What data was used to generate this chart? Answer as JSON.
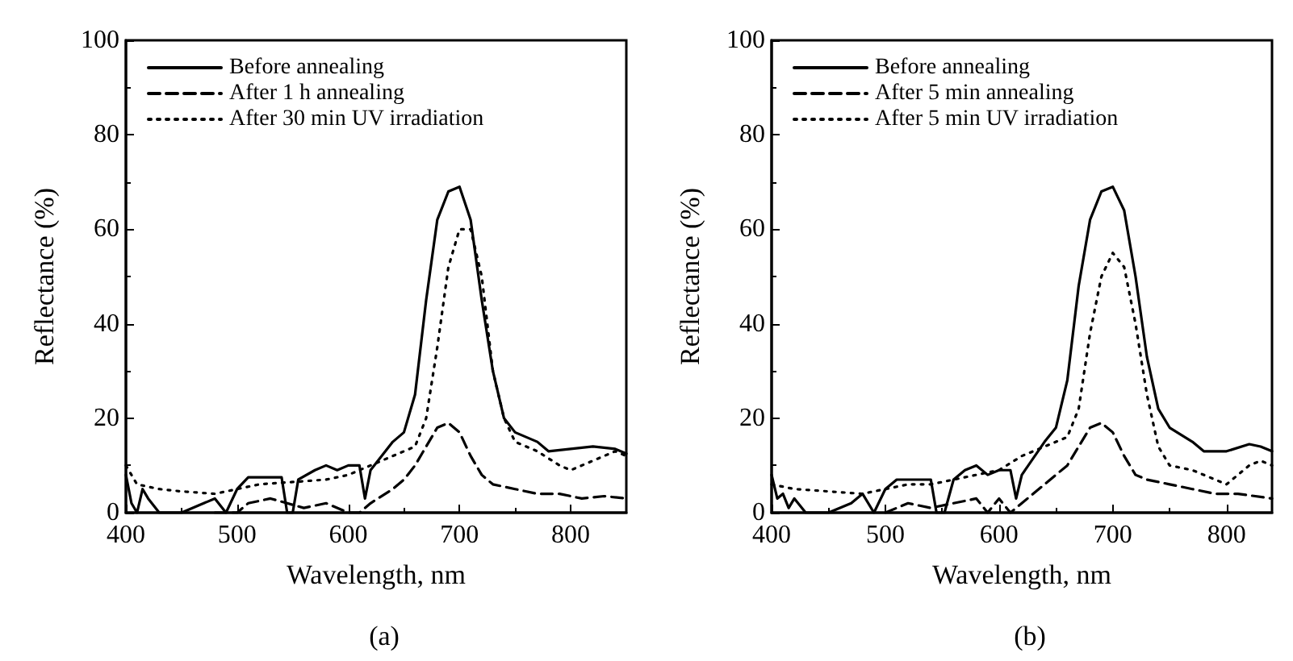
{
  "chart_data": [
    {
      "type": "line",
      "title": "(a)",
      "xlabel": "Wavelength, nm",
      "ylabel": "Reflectance (%)",
      "xlim": [
        400,
        850
      ],
      "xticks": [
        400,
        500,
        600,
        700,
        800
      ],
      "ylim": [
        0,
        100
      ],
      "yticks": [
        0,
        20,
        40,
        60,
        80,
        100
      ],
      "grid": false,
      "legend": "top left",
      "marker": "none",
      "series": [
        {
          "name": "Before annealing",
          "color": "#000000",
          "line_style": "solid",
          "x": [
            400,
            405,
            410,
            415,
            420,
            430,
            450,
            470,
            480,
            490,
            500,
            510,
            530,
            540,
            545,
            550,
            555,
            570,
            580,
            590,
            600,
            610,
            615,
            620,
            640,
            650,
            660,
            670,
            680,
            690,
            700,
            710,
            720,
            730,
            740,
            750,
            770,
            780,
            800,
            820,
            840,
            850
          ],
          "values": [
            8,
            2,
            0,
            5,
            3,
            0,
            0,
            2,
            3,
            0,
            5,
            7.5,
            7.5,
            7.5,
            0,
            0,
            7,
            9,
            10,
            9,
            10,
            10,
            3,
            9,
            15,
            17,
            25,
            45,
            62,
            68,
            69,
            62,
            45,
            30,
            20,
            17,
            15,
            13,
            13.5,
            14,
            13.5,
            12.5
          ]
        },
        {
          "name": "After 1 h annealing",
          "color": "#000000",
          "line_style": "dashed",
          "x": [
            480,
            500,
            510,
            530,
            545,
            560,
            580,
            600,
            610,
            620,
            640,
            650,
            660,
            670,
            680,
            690,
            700,
            710,
            720,
            730,
            750,
            770,
            790,
            810,
            830,
            850
          ],
          "values": [
            0,
            0,
            2,
            3,
            2,
            1,
            2,
            0,
            0,
            2,
            5,
            7,
            10,
            14,
            18,
            19,
            17,
            12,
            8,
            6,
            5,
            4,
            4,
            3,
            3.5,
            3
          ]
        },
        {
          "name": "After 30 min UV irradiation",
          "color": "#000000",
          "line_style": "dotted",
          "x": [
            400,
            410,
            430,
            450,
            480,
            500,
            520,
            550,
            580,
            600,
            620,
            640,
            660,
            670,
            680,
            690,
            700,
            710,
            720,
            730,
            740,
            750,
            770,
            790,
            800,
            820,
            840,
            850
          ],
          "values": [
            10,
            6,
            5,
            4.5,
            4,
            5,
            6,
            6.5,
            7,
            8,
            10,
            12,
            14,
            20,
            35,
            52,
            60,
            60,
            50,
            30,
            20,
            15,
            13,
            10,
            9,
            11,
            13,
            12
          ]
        }
      ]
    },
    {
      "type": "line",
      "title": "(b)",
      "xlabel": "Wavelength, nm",
      "ylabel": "Reflectance (%)",
      "xlim": [
        400,
        840
      ],
      "xticks": [
        400,
        500,
        600,
        700,
        800
      ],
      "ylim": [
        0,
        100
      ],
      "yticks": [
        0,
        20,
        40,
        60,
        80,
        100
      ],
      "grid": false,
      "legend": "top left",
      "marker": "none",
      "series": [
        {
          "name": "Before annealing",
          "color": "#000000",
          "line_style": "solid",
          "x": [
            400,
            405,
            410,
            415,
            420,
            430,
            450,
            470,
            480,
            490,
            500,
            510,
            540,
            545,
            552,
            560,
            570,
            580,
            590,
            600,
            610,
            615,
            620,
            640,
            650,
            660,
            670,
            680,
            690,
            700,
            710,
            720,
            730,
            740,
            750,
            770,
            780,
            800,
            820,
            830,
            840
          ],
          "values": [
            8,
            3,
            4,
            1,
            3,
            0,
            0,
            2,
            4,
            0,
            5,
            7,
            7,
            0,
            0,
            7,
            9,
            10,
            8,
            9,
            9,
            3,
            8,
            15,
            18,
            28,
            48,
            62,
            68,
            69,
            64,
            50,
            33,
            22,
            18,
            15,
            13,
            13,
            14.5,
            14,
            13
          ]
        },
        {
          "name": "After 5 min annealing",
          "color": "#000000",
          "line_style": "dashed",
          "x": [
            500,
            520,
            540,
            560,
            580,
            590,
            600,
            610,
            620,
            640,
            650,
            660,
            670,
            680,
            690,
            700,
            710,
            720,
            730,
            750,
            770,
            790,
            810,
            840
          ],
          "values": [
            0,
            2,
            1,
            2,
            3,
            0,
            3,
            0,
            2,
            6,
            8,
            10,
            14,
            18,
            19,
            17,
            12,
            8,
            7,
            6,
            5,
            4,
            4,
            3
          ]
        },
        {
          "name": "After 5 min UV irradiation",
          "color": "#000000",
          "line_style": "dotted",
          "x": [
            400,
            420,
            450,
            480,
            500,
            520,
            540,
            560,
            580,
            600,
            620,
            640,
            660,
            670,
            680,
            690,
            700,
            710,
            720,
            730,
            740,
            750,
            770,
            790,
            800,
            820,
            830,
            840
          ],
          "values": [
            6,
            5,
            4.5,
            4,
            5,
            6,
            6,
            7,
            8,
            9,
            12,
            14,
            16,
            22,
            38,
            50,
            55,
            52,
            40,
            25,
            14,
            10,
            9,
            7,
            6,
            10,
            11,
            10
          ]
        }
      ]
    }
  ]
}
